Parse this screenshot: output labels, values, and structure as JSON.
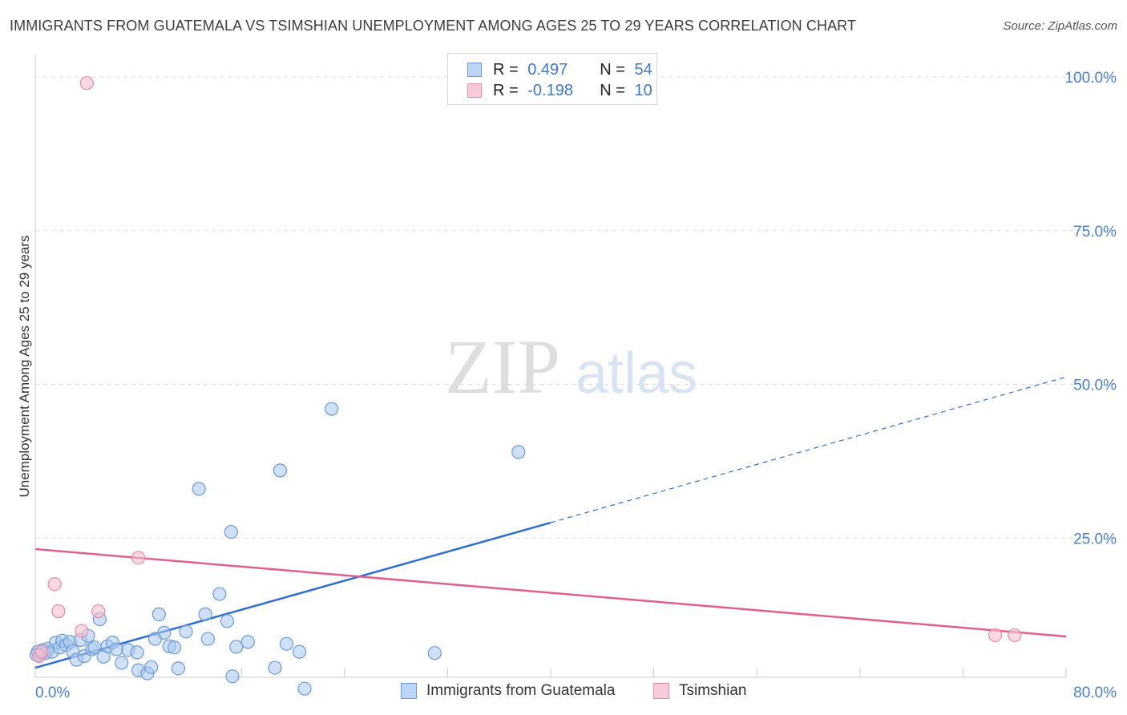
{
  "title": "IMMIGRANTS FROM GUATEMALA VS TSIMSHIAN UNEMPLOYMENT AMONG AGES 25 TO 29 YEARS CORRELATION CHART",
  "source": "Source: ZipAtlas.com",
  "watermark": {
    "zip": "ZIP",
    "atlas": "atlas"
  },
  "legend": {
    "series1": {
      "r_label": "R =",
      "r_value": "0.497",
      "n_label": "N =",
      "n_value": "54"
    },
    "series2": {
      "r_label": "R =",
      "r_value": "-0.198",
      "n_label": "N =",
      "n_value": "10"
    }
  },
  "bottom_legend": {
    "series1": "Immigrants from Guatemala",
    "series2": "Tsimshian"
  },
  "colors": {
    "blue_fill": "#a9c9f0",
    "blue_stroke": "#6a9ad8",
    "blue_line": "#2f6fcf",
    "pink_fill": "#f7bfd0",
    "pink_stroke": "#e88aa8",
    "pink_line": "#e0608b",
    "tick": "#4a7fd0",
    "grid": "#dcdcdc"
  },
  "chart_data": {
    "type": "scatter",
    "xlabel": "",
    "ylabel": "Unemployment Among Ages 25 to 29 years",
    "xlim": [
      0,
      80
    ],
    "ylim": [
      0,
      100
    ],
    "x_tick_labels": [
      "0.0%",
      "80.0%"
    ],
    "y_ticks": [
      25,
      50,
      75,
      100
    ],
    "y_tick_labels": [
      "25.0%",
      "50.0%",
      "75.0%",
      "100.0%"
    ],
    "series": [
      {
        "name": "Immigrants from Guatemala",
        "points": [
          [
            0.2,
            6.5
          ],
          [
            0.4,
            6.0
          ],
          [
            0.6,
            6.8
          ],
          [
            0.8,
            6.3
          ],
          [
            1.0,
            7.0
          ],
          [
            1.3,
            6.5
          ],
          [
            1.6,
            8.0
          ],
          [
            1.9,
            7.2
          ],
          [
            2.1,
            8.3
          ],
          [
            2.4,
            7.6
          ],
          [
            2.7,
            8.1
          ],
          [
            2.9,
            6.6
          ],
          [
            3.2,
            5.2
          ],
          [
            3.5,
            8.4
          ],
          [
            3.8,
            5.8
          ],
          [
            4.1,
            9.1
          ],
          [
            4.4,
            6.9
          ],
          [
            4.6,
            7.2
          ],
          [
            5.0,
            11.8
          ],
          [
            5.3,
            5.7
          ],
          [
            5.6,
            7.4
          ],
          [
            6.0,
            8.0
          ],
          [
            6.3,
            6.9
          ],
          [
            6.7,
            4.7
          ],
          [
            7.2,
            6.8
          ],
          [
            7.9,
            6.4
          ],
          [
            8.0,
            3.5
          ],
          [
            8.7,
            3.0
          ],
          [
            9.0,
            4.0
          ],
          [
            9.3,
            8.6
          ],
          [
            9.6,
            12.6
          ],
          [
            10.0,
            9.6
          ],
          [
            10.4,
            7.4
          ],
          [
            10.8,
            7.2
          ],
          [
            11.1,
            3.8
          ],
          [
            11.7,
            9.8
          ],
          [
            12.7,
            33.0
          ],
          [
            13.2,
            12.6
          ],
          [
            13.4,
            8.6
          ],
          [
            14.3,
            15.9
          ],
          [
            14.9,
            11.5
          ],
          [
            15.2,
            26.0
          ],
          [
            15.3,
            2.5
          ],
          [
            15.6,
            7.3
          ],
          [
            16.5,
            8.1
          ],
          [
            18.6,
            3.9
          ],
          [
            19.0,
            36.0
          ],
          [
            19.5,
            7.8
          ],
          [
            20.5,
            6.5
          ],
          [
            20.9,
            0.5
          ],
          [
            23.0,
            46.0
          ],
          [
            31.0,
            6.3
          ],
          [
            37.5,
            39.0
          ],
          [
            0.1,
            6.0
          ]
        ],
        "trend": {
          "x": [
            0,
            40
          ],
          "y": [
            3.9,
            27.5
          ],
          "dashed_extension": {
            "x": [
              40,
              80
            ],
            "y": [
              27.5,
              51.2
            ]
          }
        }
      },
      {
        "name": "Tsimshian",
        "points": [
          [
            0.3,
            5.8
          ],
          [
            0.5,
            6.5
          ],
          [
            1.5,
            17.5
          ],
          [
            1.8,
            13.1
          ],
          [
            3.6,
            9.9
          ],
          [
            4.9,
            13.1
          ],
          [
            8.0,
            21.8
          ],
          [
            4.0,
            99.0
          ],
          [
            74.5,
            9.2
          ],
          [
            76.0,
            9.2
          ]
        ],
        "trend": {
          "x": [
            0,
            80
          ],
          "y": [
            23.2,
            9.0
          ]
        }
      }
    ]
  }
}
